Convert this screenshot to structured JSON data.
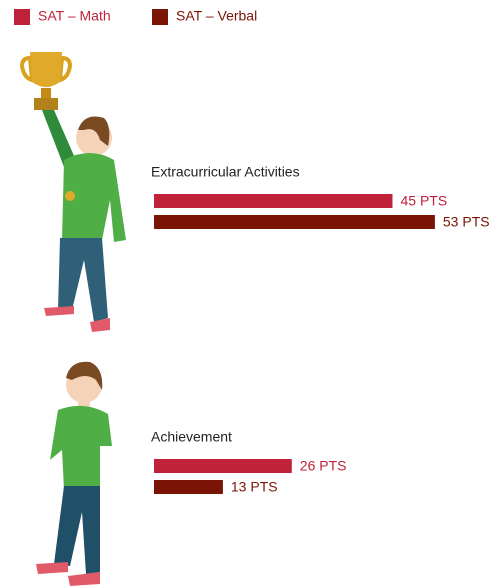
{
  "chart_data": {
    "type": "bar",
    "categories": [
      "Extracurricular Activities",
      "Achievement"
    ],
    "series": [
      {
        "name": "SAT – Math",
        "color": "#c0223a",
        "values": [
          45,
          26
        ],
        "value_labels": [
          "45 PTS",
          "26 PTS"
        ]
      },
      {
        "name": "SAT – Verbal",
        "color": "#7a1405",
        "values": [
          53,
          13
        ],
        "value_labels": [
          "53 PTS",
          "13 PTS"
        ]
      }
    ]
  }
}
